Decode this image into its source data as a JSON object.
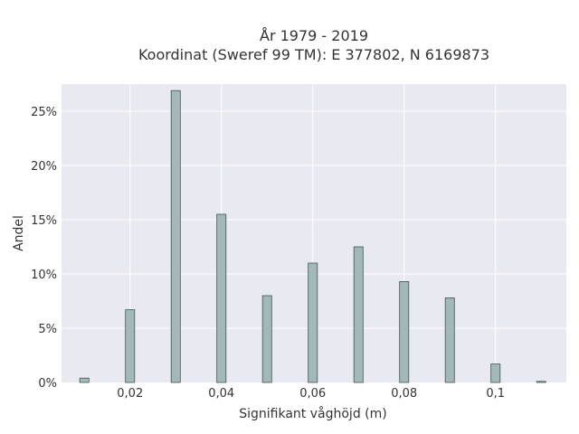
{
  "chart_data": {
    "type": "bar",
    "title_lines": [
      "År 1979 - 2019",
      "Koordinat (Sweref 99 TM): E 377802, N 6169873"
    ],
    "xlabel": "Signifikant våghöjd (m)",
    "ylabel": "Andel",
    "x": [
      0.01,
      0.02,
      0.03,
      0.04,
      0.05,
      0.06,
      0.07,
      0.08,
      0.09,
      0.1,
      0.11
    ],
    "values": [
      0.4,
      6.7,
      26.9,
      15.5,
      8.0,
      11.0,
      12.5,
      9.3,
      7.8,
      1.7,
      0.1
    ],
    "xlim": [
      0.005,
      0.1155
    ],
    "ylim": [
      0,
      27.5
    ],
    "x_ticks": [
      0.02,
      0.04,
      0.06,
      0.08,
      0.1
    ],
    "x_tick_labels": [
      "0,02",
      "0,04",
      "0,06",
      "0,08",
      "0,1"
    ],
    "y_ticks": [
      0,
      5,
      10,
      15,
      20,
      25
    ],
    "y_tick_labels": [
      "0%",
      "5%",
      "10%",
      "15%",
      "20%",
      "25%"
    ],
    "bar_width": 0.002,
    "grid": true,
    "colors": {
      "plot_bg": "#e9e9f1",
      "bar_fill": "#a2b8b9",
      "bar_stroke": "#3f5455",
      "grid": "#ffffff",
      "text": "#333333"
    }
  }
}
